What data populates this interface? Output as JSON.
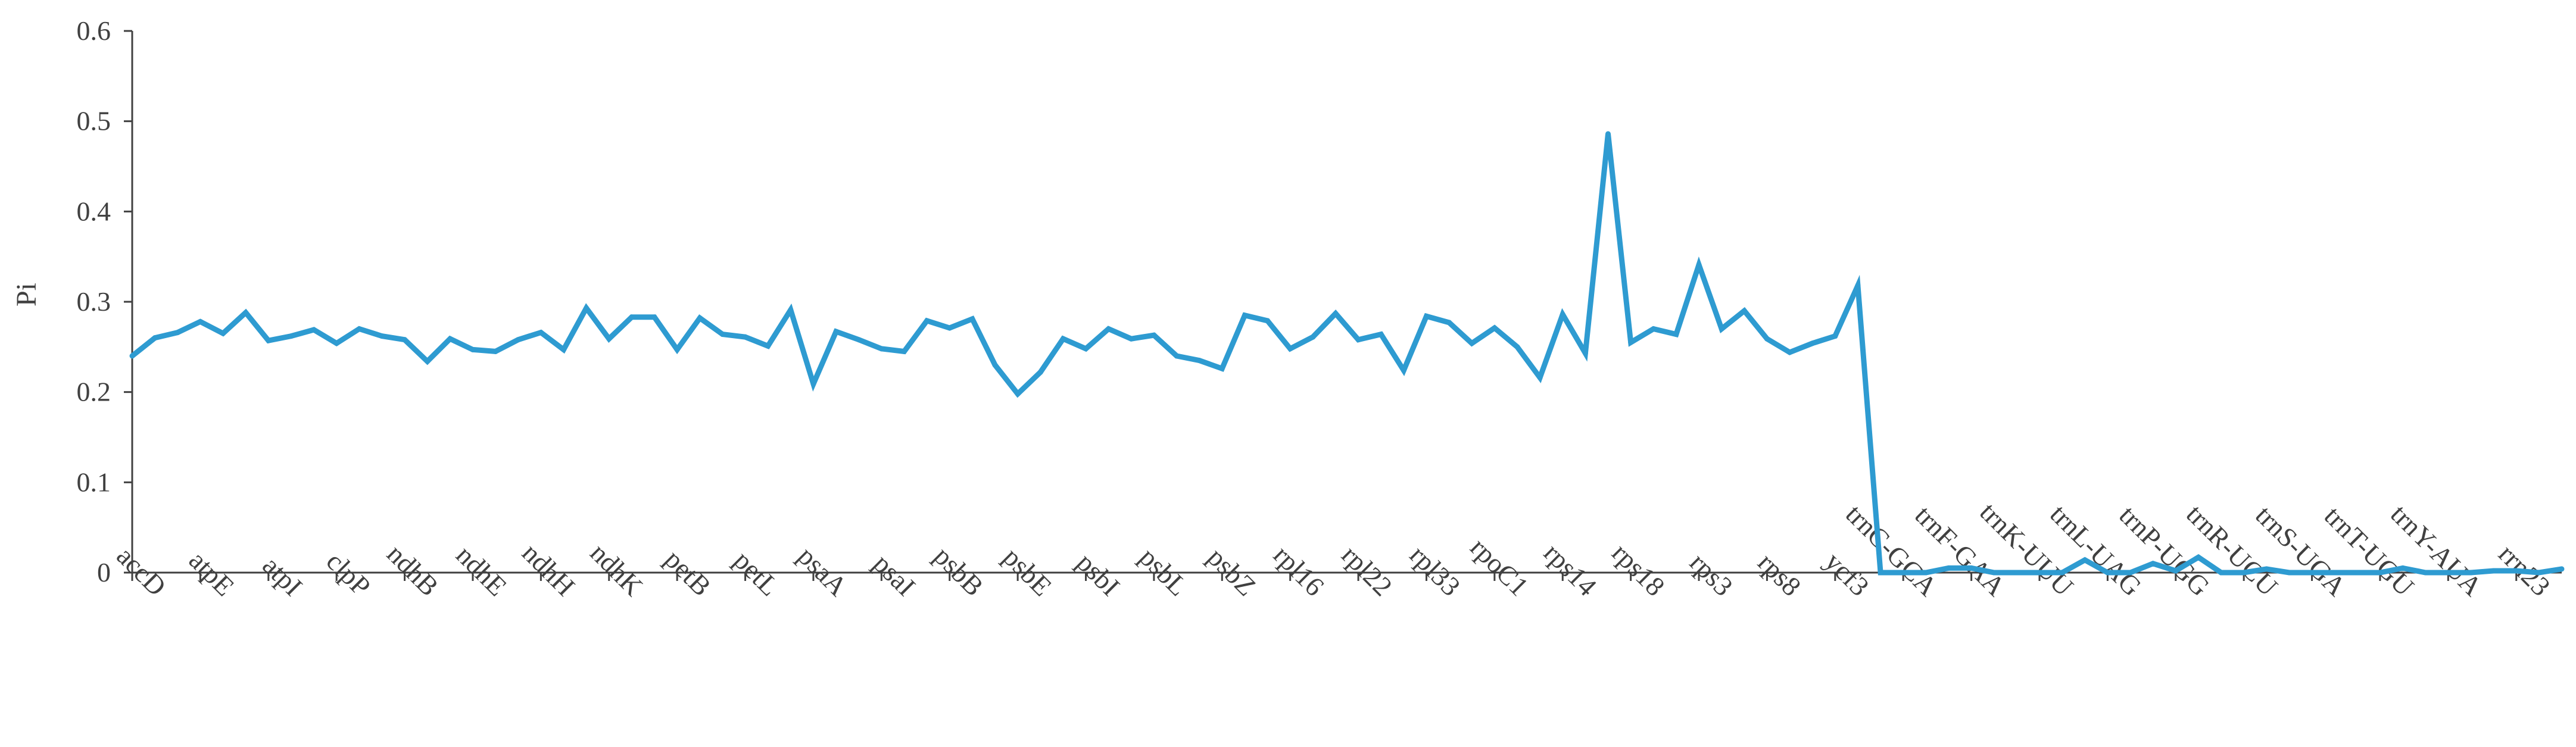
{
  "chart_data": {
    "type": "line",
    "ylabel": "Pi",
    "xlabel": "",
    "ylim": [
      0,
      0.6
    ],
    "yticks": [
      "0",
      "0.1",
      "0.2",
      "0.3",
      "0.4",
      "0.5",
      "0.6"
    ],
    "grid": false,
    "legend": "none",
    "colors": {
      "line": "#2e9bd1",
      "axis": "#404040",
      "text": "#404040"
    },
    "x_labels": [
      {
        "index": 0,
        "label": "accD"
      },
      {
        "index": 3,
        "label": "atpE"
      },
      {
        "index": 6,
        "label": "atpI"
      },
      {
        "index": 9,
        "label": "clpP"
      },
      {
        "index": 12,
        "label": "ndhB"
      },
      {
        "index": 15,
        "label": "ndhE"
      },
      {
        "index": 18,
        "label": "ndhH"
      },
      {
        "index": 21,
        "label": "ndhK"
      },
      {
        "index": 24,
        "label": "petB"
      },
      {
        "index": 27,
        "label": "petL"
      },
      {
        "index": 30,
        "label": "psaA"
      },
      {
        "index": 33,
        "label": "psaI"
      },
      {
        "index": 36,
        "label": "psbB"
      },
      {
        "index": 39,
        "label": "psbE"
      },
      {
        "index": 42,
        "label": "psbI"
      },
      {
        "index": 45,
        "label": "psbL"
      },
      {
        "index": 48,
        "label": "psbZ"
      },
      {
        "index": 51,
        "label": "rpl16"
      },
      {
        "index": 54,
        "label": "rpl22"
      },
      {
        "index": 57,
        "label": "rpl33"
      },
      {
        "index": 60,
        "label": "rpoC1"
      },
      {
        "index": 63,
        "label": "rps14"
      },
      {
        "index": 66,
        "label": "rps18"
      },
      {
        "index": 69,
        "label": "rps3"
      },
      {
        "index": 72,
        "label": "rps8"
      },
      {
        "index": 75,
        "label": "ycf3"
      },
      {
        "index": 78,
        "label": "trnC-GCA"
      },
      {
        "index": 81,
        "label": "trnF-GAA"
      },
      {
        "index": 84,
        "label": "trnK-UUU"
      },
      {
        "index": 87,
        "label": "trnL-UAG"
      },
      {
        "index": 90,
        "label": "trnP-UGG"
      },
      {
        "index": 93,
        "label": "trnR-UCU"
      },
      {
        "index": 96,
        "label": "trnS-UGA"
      },
      {
        "index": 99,
        "label": "trnT-UGU"
      },
      {
        "index": 102,
        "label": "trnY-AUA"
      },
      {
        "index": 105,
        "label": "rrn23"
      }
    ],
    "series": [
      {
        "values": [
          0.24,
          0.26,
          0.266,
          0.278,
          0.265,
          0.288,
          0.257,
          0.262,
          0.269,
          0.254,
          0.27,
          0.262,
          0.258,
          0.234,
          0.259,
          0.247,
          0.245,
          0.258,
          0.266,
          0.247,
          0.293,
          0.259,
          0.283,
          0.283,
          0.247,
          0.282,
          0.264,
          0.261,
          0.251,
          0.291,
          0.209,
          0.267,
          0.258,
          0.248,
          0.245,
          0.279,
          0.271,
          0.281,
          0.23,
          0.198,
          0.222,
          0.259,
          0.248,
          0.27,
          0.259,
          0.263,
          0.24,
          0.235,
          0.226,
          0.285,
          0.279,
          0.248,
          0.261,
          0.287,
          0.258,
          0.264,
          0.224,
          0.284,
          0.277,
          0.254,
          0.271,
          0.25,
          0.216,
          0.286,
          0.243,
          0.486,
          0.255,
          0.27,
          0.264,
          0.341,
          0.27,
          0.29,
          0.259,
          0.244,
          0.254,
          0.262,
          0.318,
          0.0,
          0.0,
          0.0,
          0.005,
          0.005,
          0.0,
          0.0,
          0.0,
          0.0,
          0.014,
          0.0,
          0.0,
          0.01,
          0.002,
          0.017,
          0.0,
          0.0,
          0.004,
          0.0,
          0.0,
          0.0,
          0.0,
          0.0,
          0.005,
          0.0,
          0.0,
          0.0,
          0.002,
          0.002,
          0.0,
          0.004
        ]
      }
    ]
  }
}
